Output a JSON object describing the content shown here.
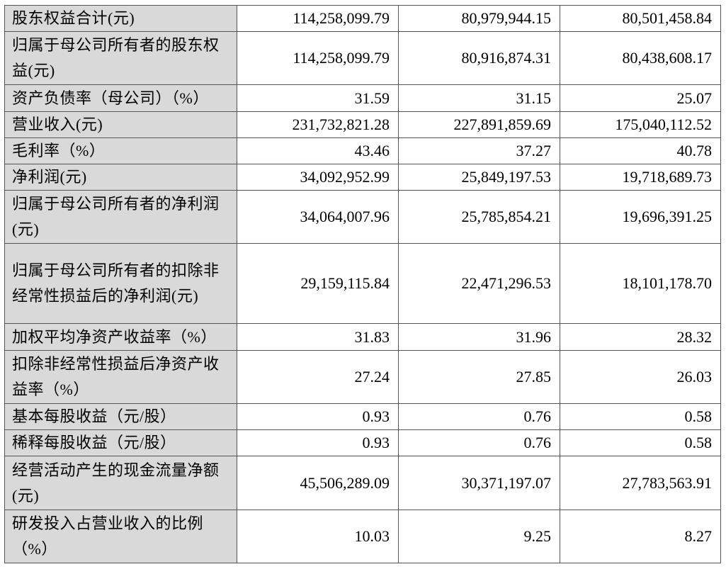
{
  "rows": [
    {
      "label": "股东权益合计(元)",
      "v1": "114,258,099.79",
      "v2": "80,979,944.15",
      "v3": "80,501,458.84"
    },
    {
      "label": "归属于母公司所有者的股东权益(元)",
      "v1": "114,258,099.79",
      "v2": "80,916,874.31",
      "v3": "80,438,608.17"
    },
    {
      "label": "资产负债率（母公司）（%）",
      "v1": "31.59",
      "v2": "31.15",
      "v3": "25.07"
    },
    {
      "label": "营业收入(元)",
      "v1": "231,732,821.28",
      "v2": "227,891,859.69",
      "v3": "175,040,112.52"
    },
    {
      "label": "毛利率（%）",
      "v1": "43.46",
      "v2": "37.27",
      "v3": "40.78"
    },
    {
      "label": "净利润(元)",
      "v1": "34,092,952.99",
      "v2": "25,849,197.53",
      "v3": "19,718,689.73"
    },
    {
      "label": "归属于母公司所有者的净利润(元)",
      "v1": "34,064,007.96",
      "v2": "25,785,854.21",
      "v3": "19,696,391.25"
    },
    {
      "label": "归属于母公司所有者的扣除非经常性损益后的净利润(元)",
      "v1": "29,159,115.84",
      "v2": "22,471,296.53",
      "v3": "18,101,178.70"
    },
    {
      "label": "加权平均净资产收益率（%）",
      "v1": "31.83",
      "v2": "31.96",
      "v3": "28.32"
    },
    {
      "label": "扣除非经常性损益后净资产收益率（%）",
      "v1": "27.24",
      "v2": "27.85",
      "v3": "26.03"
    },
    {
      "label": "基本每股收益（元/股）",
      "v1": "0.93",
      "v2": "0.76",
      "v3": "0.58"
    },
    {
      "label": "稀释每股收益（元/股）",
      "v1": "0.93",
      "v2": "0.76",
      "v3": "0.58"
    },
    {
      "label": "经营活动产生的现金流量净额(元)",
      "v1": "45,506,289.09",
      "v2": "30,371,197.07",
      "v3": "27,783,563.91"
    },
    {
      "label": "研发投入占营业收入的比例（%）",
      "v1": "10.03",
      "v2": "9.25",
      "v3": "8.27"
    }
  ]
}
